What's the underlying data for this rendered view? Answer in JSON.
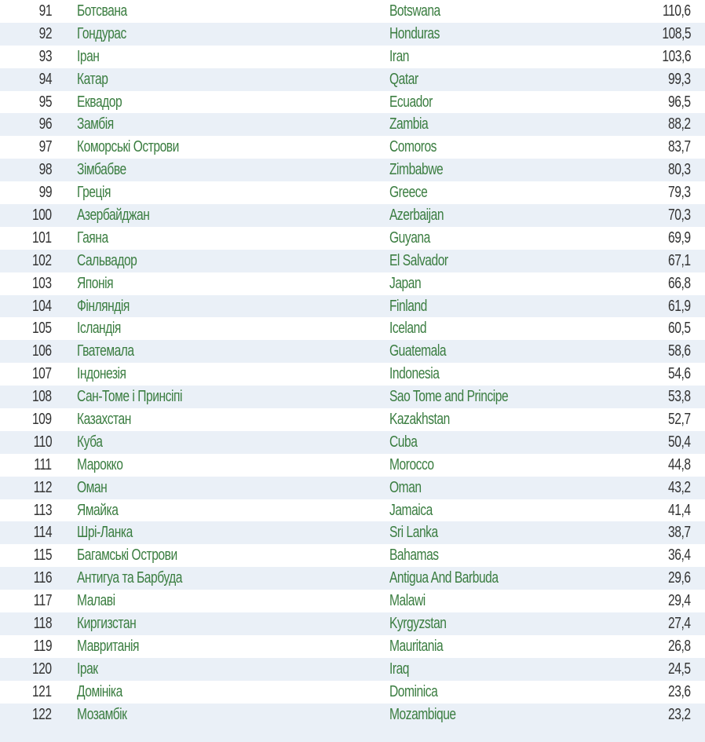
{
  "colors": {
    "name_green": "#3a7d40",
    "stripe": "#eaf0f7",
    "text": "#333333"
  },
  "rows": [
    {
      "rank": "91",
      "ua": "Ботсвана",
      "en": "Botswana",
      "value": "110,6"
    },
    {
      "rank": "92",
      "ua": "Гондурас",
      "en": "Honduras",
      "value": "108,5"
    },
    {
      "rank": "93",
      "ua": "Іран",
      "en": "Iran",
      "value": "103,6"
    },
    {
      "rank": "94",
      "ua": "Катар",
      "en": "Qatar",
      "value": "99,3"
    },
    {
      "rank": "95",
      "ua": "Еквадор",
      "en": "Ecuador",
      "value": "96,5"
    },
    {
      "rank": "96",
      "ua": "Замбія",
      "en": "Zambia",
      "value": "88,2"
    },
    {
      "rank": "97",
      "ua": "Коморські Острови",
      "en": "Comoros",
      "value": "83,7"
    },
    {
      "rank": "98",
      "ua": "Зімбабве",
      "en": "Zimbabwe",
      "value": "80,3"
    },
    {
      "rank": "99",
      "ua": "Греція",
      "en": "Greece",
      "value": "79,3"
    },
    {
      "rank": "100",
      "ua": "Азербайджан",
      "en": "Azerbaijan",
      "value": "70,3"
    },
    {
      "rank": "101",
      "ua": "Гаяна",
      "en": "Guyana",
      "value": "69,9"
    },
    {
      "rank": "102",
      "ua": "Сальвадор",
      "en": "El Salvador",
      "value": "67,1"
    },
    {
      "rank": "103",
      "ua": "Японія",
      "en": "Japan",
      "value": "66,8"
    },
    {
      "rank": "104",
      "ua": "Фінляндія",
      "en": "Finland",
      "value": "61,9"
    },
    {
      "rank": "105",
      "ua": "Ісландія",
      "en": "Iceland",
      "value": "60,5"
    },
    {
      "rank": "106",
      "ua": "Гватемала",
      "en": "Guatemala",
      "value": "58,6"
    },
    {
      "rank": "107",
      "ua": "Індонезія",
      "en": "Indonesia",
      "value": "54,6"
    },
    {
      "rank": "108",
      "ua": "Сан-Томе і Принсіпі",
      "en": "Sao Tome and Principe",
      "value": "53,8"
    },
    {
      "rank": "109",
      "ua": "Казахстан",
      "en": "Kazakhstan",
      "value": "52,7"
    },
    {
      "rank": "110",
      "ua": "Куба",
      "en": "Cuba",
      "value": "50,4"
    },
    {
      "rank": "111",
      "ua": "Марокко",
      "en": "Morocco",
      "value": "44,8"
    },
    {
      "rank": "112",
      "ua": "Оман",
      "en": "Oman",
      "value": "43,2"
    },
    {
      "rank": "113",
      "ua": "Ямайка",
      "en": "Jamaica",
      "value": "41,4"
    },
    {
      "rank": "114",
      "ua": "Шрі-Ланка",
      "en": "Sri Lanka",
      "value": "38,7"
    },
    {
      "rank": "115",
      "ua": "Багамські Острови",
      "en": "Bahamas",
      "value": "36,4"
    },
    {
      "rank": "116",
      "ua": "Антигуа та Барбуда",
      "en": "Antigua And Barbuda",
      "value": "29,6"
    },
    {
      "rank": "117",
      "ua": "Малаві",
      "en": "Malawi",
      "value": "29,4"
    },
    {
      "rank": "118",
      "ua": "Киргизстан",
      "en": "Kyrgyzstan",
      "value": "27,4"
    },
    {
      "rank": "119",
      "ua": "Мавританія",
      "en": "Mauritania",
      "value": "26,8"
    },
    {
      "rank": "120",
      "ua": "Ірак",
      "en": "Iraq",
      "value": "24,5"
    },
    {
      "rank": "121",
      "ua": "Домініка",
      "en": "Dominica",
      "value": "23,6"
    },
    {
      "rank": "122",
      "ua": "Мозамбік",
      "en": "Mozambique",
      "value": "23,2"
    }
  ]
}
